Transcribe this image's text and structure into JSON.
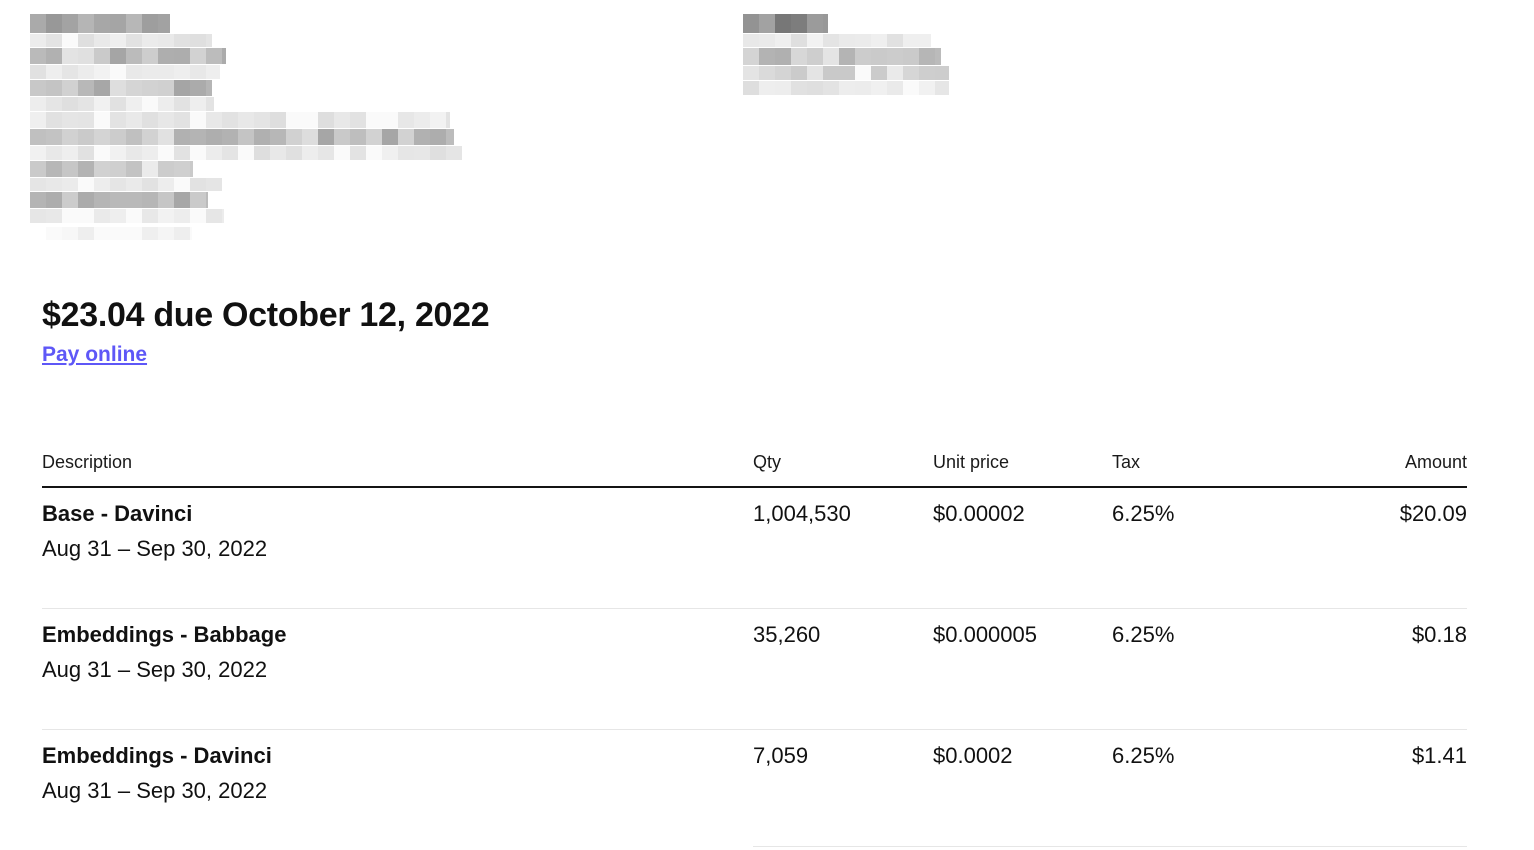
{
  "colors": {
    "link_accent": "#5E57F7",
    "text": "#111111",
    "header_rule": "#141414",
    "row_divider": "#e6e6e6",
    "background": "#ffffff"
  },
  "invoice": {
    "amount_due_heading": "$23.04 due October 12, 2022",
    "pay_online_label": "Pay online"
  },
  "table": {
    "headers": [
      "Description",
      "Qty",
      "Unit price",
      "Tax",
      "Amount"
    ],
    "rows": [
      {
        "description": "Base - Davinci",
        "period": "Aug 31 – Sep 30, 2022",
        "qty": "1,004,530",
        "unit_price": "$0.00002",
        "tax": "6.25%",
        "amount": "$20.09"
      },
      {
        "description": "Embeddings - Babbage",
        "period": "Aug 31 – Sep 30, 2022",
        "qty": "35,260",
        "unit_price": "$0.000005",
        "tax": "6.25%",
        "amount": "$0.18"
      },
      {
        "description": "Embeddings - Davinci",
        "period": "Aug 31 – Sep 30, 2022",
        "qty": "7,059",
        "unit_price": "$0.0002",
        "tax": "6.25%",
        "amount": "$1.41"
      }
    ]
  },
  "redacted": {
    "left_cluster": "pixelated sender / billing details",
    "right_cluster": "pixelated invoice meta details"
  }
}
